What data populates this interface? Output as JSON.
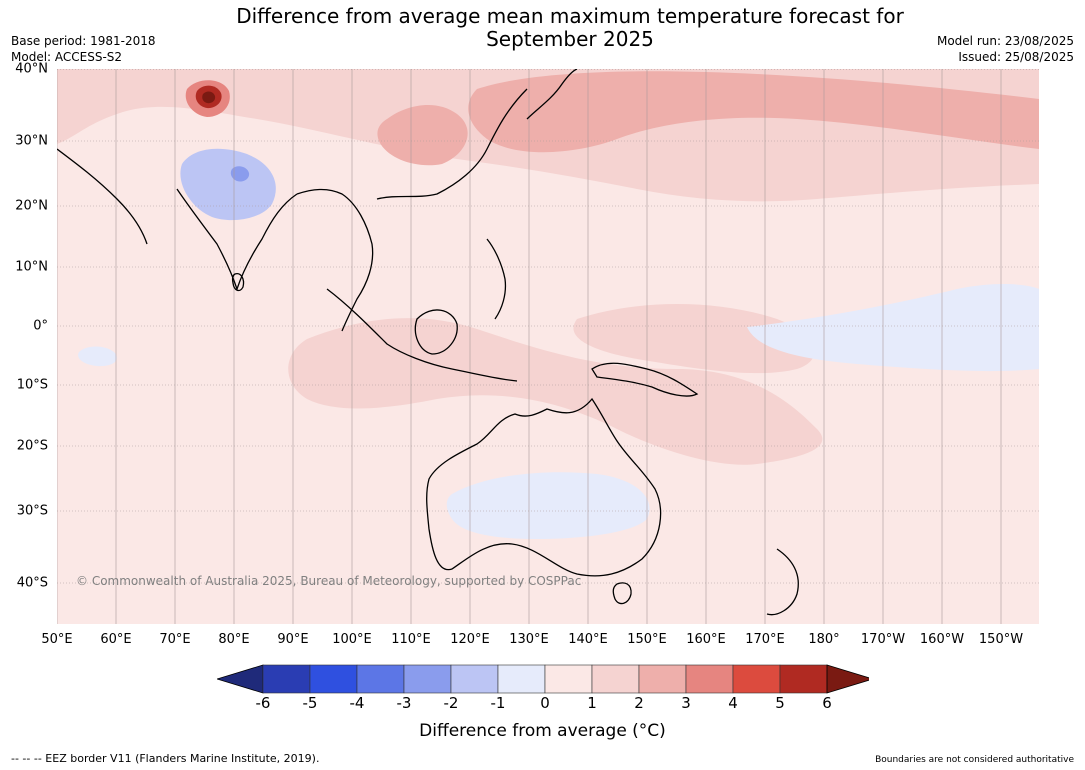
{
  "title_line1": "Difference from average mean maximum temperature forecast for",
  "title_line2": "September 2025",
  "base_period": "Base period: 1981-2018",
  "model": "Model: ACCESS-S2",
  "model_run": "Model run: 23/08/2025",
  "issued": "Issued: 25/08/2025",
  "copyright": "© Commonwealth of Australia 2025, Bureau of Meteorology, supported by COSPPac",
  "latitudes": [
    "40°N",
    "30°N",
    "20°N",
    "10°N",
    "0°",
    "10°S",
    "20°S",
    "30°S",
    "40°S"
  ],
  "longitudes": [
    "50°E",
    "60°E",
    "70°E",
    "80°E",
    "90°E",
    "100°E",
    "110°E",
    "120°E",
    "130°E",
    "140°E",
    "150°E",
    "160°E",
    "170°E",
    "180°",
    "170°W",
    "160°W",
    "150°W"
  ],
  "colorbar": {
    "ticks": [
      "-6",
      "-5",
      "-4",
      "-3",
      "-2",
      "-1",
      "0",
      "1",
      "2",
      "3",
      "4",
      "5",
      "6"
    ],
    "colors": [
      "#1f2a7a",
      "#2a3db3",
      "#2f50e0",
      "#5c76e6",
      "#8a9ced",
      "#bcc5f4",
      "#e6ebfb",
      "#fbe8e6",
      "#f5d3d1",
      "#eeafab",
      "#e68580",
      "#dc4b3e",
      "#b02a22",
      "#7a1a12"
    ],
    "label": "Difference from average (°C)"
  },
  "footer_left": "-- -- -- EEZ border V11 (Flanders Marine Institute, 2019).",
  "footer_right": "Boundaries are not considered authoritative"
}
